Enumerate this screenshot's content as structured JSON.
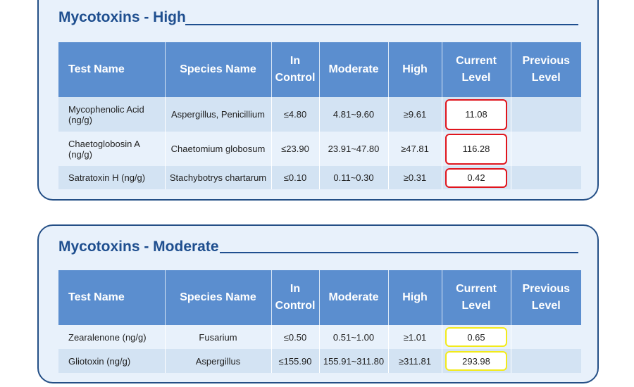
{
  "columns": [
    "Test Name",
    "Species Name",
    "In Control",
    "Moderate",
    "High",
    "Current Level",
    "Previous Level"
  ],
  "sections": [
    {
      "title": "Mycotoxins - High",
      "rows": [
        {
          "test": "Mycophenolic Acid (ng/g)",
          "species": "Aspergillus, Penicillium",
          "in_control": "≤4.80",
          "moderate": "4.81~9.60",
          "high": "≥9.61",
          "current": "11.08",
          "previous": "",
          "flag": "red"
        },
        {
          "test": "Chaetoglobosin A (ng/g)",
          "species": "Chaetomium globosum",
          "in_control": "≤23.90",
          "moderate": "23.91~47.80",
          "high": "≥47.81",
          "current": "116.28",
          "previous": "",
          "flag": "red"
        },
        {
          "test": "Satratoxin H (ng/g)",
          "species": "Stachybotrys chartarum",
          "in_control": "≤0.10",
          "moderate": "0.11~0.30",
          "high": "≥0.31",
          "current": "0.42",
          "previous": "",
          "flag": "red"
        }
      ]
    },
    {
      "title": "Mycotoxins - Moderate",
      "rows": [
        {
          "test": "Zearalenone (ng/g)",
          "species": "Fusarium",
          "in_control": "≤0.50",
          "moderate": "0.51~1.00",
          "high": "≥1.01",
          "current": "0.65",
          "previous": "",
          "flag": "yellow"
        },
        {
          "test": "Gliotoxin (ng/g)",
          "species": "Aspergillus",
          "in_control": "≤155.90",
          "moderate": "155.91~311.80",
          "high": "≥311.81",
          "current": "293.98",
          "previous": "",
          "flag": "yellow"
        }
      ]
    }
  ],
  "colors": {
    "flag_high": "#e0151d",
    "flag_moderate": "#f2ea1b",
    "header_bg": "#5b8ecf",
    "panel_border": "#244f86"
  }
}
